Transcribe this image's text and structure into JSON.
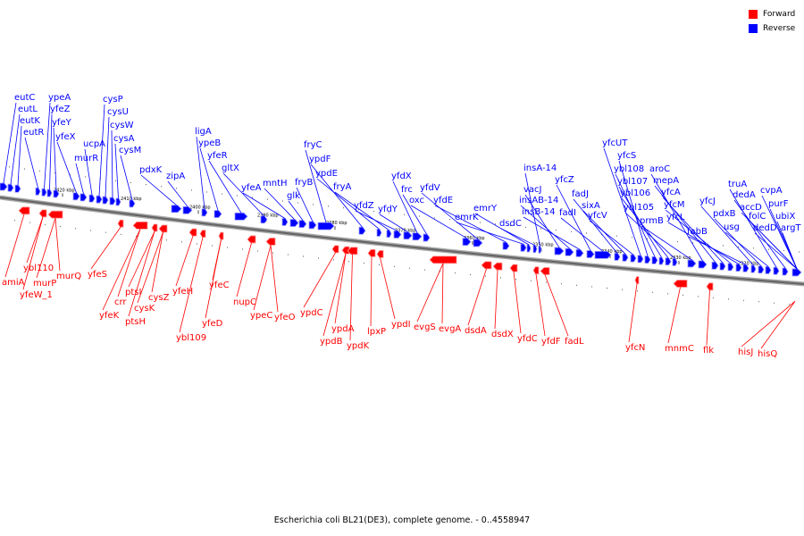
{
  "legend": [
    {
      "label": "Forward",
      "color": "#ff0000"
    },
    {
      "label": "Reverse",
      "color": "#0000ff"
    }
  ],
  "caption": "Escherichia coli BL21(DE3), complete genome. - 0..4558947",
  "colors": {
    "forward": "#ff0000",
    "forward_light": "#ff9999",
    "reverse": "#0000ff",
    "reverse_light": "#9999ff",
    "axis": "#666666"
  },
  "ticks": [
    "2420 kbp",
    "2410 kbp",
    "2400 kbp",
    "2390 kbp",
    "2380 kbp",
    "2370 kbp",
    "2360 kbp",
    "2350 kbp",
    "2340 kbp",
    "2330 kbp",
    "2320 kbp"
  ],
  "reverse_genes": [
    "eutC",
    "eutL",
    "eutK",
    "eutR",
    "ypeA",
    "yfeZ",
    "yfeY",
    "yfeX",
    "murR",
    "ucpA",
    "cysP",
    "cysU",
    "cysW",
    "cysA",
    "cysM",
    "pdxK",
    "zipA",
    "ligA",
    "ypeB",
    "yfeR",
    "gltX",
    "yfeA",
    "mntH",
    "glk",
    "fryB",
    "fryC",
    "ypdF",
    "ypdE",
    "fryA",
    "yfdZ",
    "yfdY",
    "yfdX",
    "frc",
    "oxc",
    "yfdV",
    "yfdE",
    "emrK",
    "emrY",
    "dsdC",
    "insA-14",
    "vacJ",
    "insAB-14",
    "insB-14",
    "yfcZ",
    "fadI",
    "fadJ",
    "sixA",
    "yfcV",
    "yfcUT",
    "yfcS",
    "ybl108",
    "ybl107",
    "ybl106",
    "ybl105",
    "prmB",
    "aroC",
    "mepA",
    "yfcA",
    "yfcM",
    "yfcL",
    "fabB",
    "yfcJ",
    "pdxB",
    "usg",
    "truA",
    "dedA",
    "accD",
    "folC",
    "dedD",
    "cvpA",
    "purF",
    "ubiX",
    "argT"
  ],
  "forward_genes": [
    "amiA",
    "ybl110",
    "yfeW_1",
    "murP",
    "murQ",
    "yfeS",
    "yfeK",
    "crr",
    "ptsI",
    "ptsH",
    "cysK",
    "cysZ",
    "yfeH",
    "ybl109",
    "yfeC",
    "yfeD",
    "nupC",
    "ypeC",
    "yfeO",
    "ypdC",
    "ypdA",
    "ypdB",
    "ypdK",
    "lpxP",
    "ypdI",
    "evgS",
    "evgA",
    "dsdA",
    "dsdX",
    "yfdC",
    "yfdF",
    "fadL",
    "yfcN",
    "mnmC",
    "flk",
    "hisJ",
    "hisQ"
  ]
}
